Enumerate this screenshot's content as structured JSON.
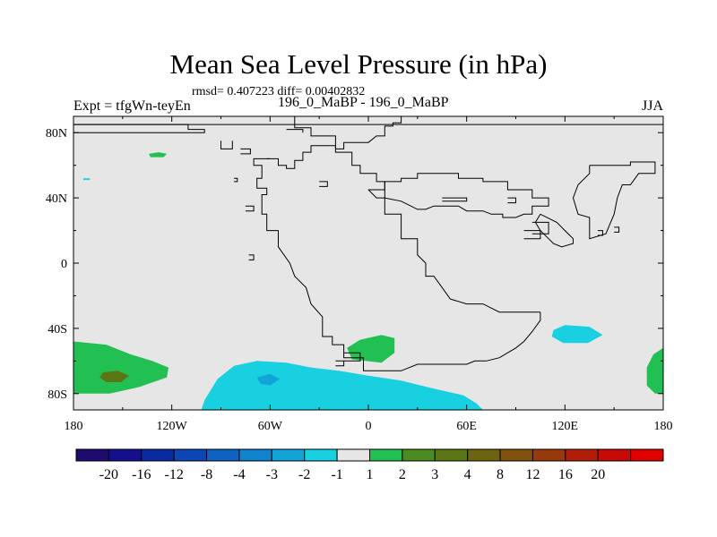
{
  "title": "Mean Sea Level Pressure (in hPa)",
  "subtitle": "rmsd= 0.407223 diff= 0.00402832",
  "left_label": "Expt = tfgWn-teyEn",
  "center_label": "196_0_MaBP - 196_0_MaBP",
  "right_label": "JJA",
  "map": {
    "projection": "cylindrical equidistant",
    "lon_range": [
      -180,
      180
    ],
    "lat_range": [
      -90,
      90
    ],
    "background_color": "#e6e6e6",
    "coastline_color": "#000000"
  },
  "x_ticks": [
    {
      "lon": -180,
      "label": "180"
    },
    {
      "lon": -120,
      "label": "120W"
    },
    {
      "lon": -60,
      "label": "60W"
    },
    {
      "lon": 0,
      "label": "0"
    },
    {
      "lon": 60,
      "label": "60E"
    },
    {
      "lon": 120,
      "label": "120E"
    },
    {
      "lon": 180,
      "label": "180"
    }
  ],
  "y_ticks": [
    {
      "lat": 80,
      "label": "80N"
    },
    {
      "lat": 40,
      "label": "40N"
    },
    {
      "lat": 0,
      "label": "0"
    },
    {
      "lat": -40,
      "label": "40S"
    },
    {
      "lat": -80,
      "label": "80S"
    }
  ],
  "colorbar": {
    "colors": [
      "#1f0a6e",
      "#140f8c",
      "#0c2aa0",
      "#0b46b4",
      "#0d62c2",
      "#1182cc",
      "#12a3d8",
      "#18d0e0",
      "#e6e6e6",
      "#22c052",
      "#4a8c22",
      "#5b7614",
      "#6e6410",
      "#80500e",
      "#963a0c",
      "#b01e08",
      "#c80a06",
      "#e00000"
    ],
    "labels": [
      "-20",
      "-16",
      "-12",
      "-8",
      "-4",
      "-3",
      "-2",
      "-1",
      "1",
      "2",
      "3",
      "4",
      "8",
      "12",
      "16",
      "20"
    ]
  },
  "anomaly_regions": [
    {
      "name": "arctic-positive",
      "level": 2,
      "color": "#22c052",
      "points": [
        [
          -134,
          67
        ],
        [
          -128,
          68
        ],
        [
          -123,
          67
        ],
        [
          -125,
          65
        ],
        [
          -133,
          65
        ]
      ]
    },
    {
      "name": "north-pacific-small-negative",
      "level": -1,
      "color": "#18d0e0",
      "points": [
        [
          -174,
          52
        ],
        [
          -170,
          52
        ],
        [
          -170,
          51
        ],
        [
          -174,
          51
        ]
      ]
    },
    {
      "name": "south-pacific-positive",
      "level": 2,
      "color": "#22c052",
      "points": [
        [
          -180,
          -48
        ],
        [
          -160,
          -50
        ],
        [
          -145,
          -56
        ],
        [
          -132,
          -60
        ],
        [
          -122,
          -64
        ],
        [
          -123,
          -70
        ],
        [
          -140,
          -76
        ],
        [
          -158,
          -80
        ],
        [
          -180,
          -80
        ]
      ]
    },
    {
      "name": "south-pacific-core",
      "level": 3,
      "color": "#5b7614",
      "points": [
        [
          -162,
          -67
        ],
        [
          -153,
          -66
        ],
        [
          -146,
          -69
        ],
        [
          -151,
          -73
        ],
        [
          -160,
          -73
        ],
        [
          -164,
          -70
        ]
      ]
    },
    {
      "name": "southern-ocean-negative",
      "level": -1,
      "color": "#18d0e0",
      "points": [
        [
          -102,
          -90
        ],
        [
          -100,
          -84
        ],
        [
          -92,
          -71
        ],
        [
          -82,
          -63
        ],
        [
          -68,
          -60
        ],
        [
          -50,
          -61
        ],
        [
          -35,
          -64
        ],
        [
          -18,
          -66
        ],
        [
          0,
          -69
        ],
        [
          20,
          -72
        ],
        [
          40,
          -77
        ],
        [
          58,
          -81
        ],
        [
          66,
          -86
        ],
        [
          70,
          -90
        ]
      ]
    },
    {
      "name": "southern-ocean-core",
      "level": -2,
      "color": "#12a3d8",
      "points": [
        [
          -68,
          -70
        ],
        [
          -60,
          -68
        ],
        [
          -54,
          -71
        ],
        [
          -60,
          -75
        ],
        [
          -66,
          -74
        ]
      ]
    },
    {
      "name": "south-atlantic-positive",
      "level": 2,
      "color": "#22c052",
      "points": [
        [
          -13,
          -52
        ],
        [
          -5,
          -47
        ],
        [
          8,
          -44
        ],
        [
          16,
          -46
        ],
        [
          16,
          -55
        ],
        [
          8,
          -61
        ],
        [
          -10,
          -59
        ]
      ]
    },
    {
      "name": "indian-ocean-negative",
      "level": -1,
      "color": "#18d0e0",
      "points": [
        [
          113,
          -41
        ],
        [
          120,
          -38
        ],
        [
          135,
          -39
        ],
        [
          143,
          -44
        ],
        [
          134,
          -49
        ],
        [
          119,
          -49
        ],
        [
          112,
          -45
        ]
      ]
    },
    {
      "name": "dateline-positive",
      "level": 2,
      "color": "#22c052",
      "points": [
        [
          180,
          -52
        ],
        [
          174,
          -56
        ],
        [
          170,
          -64
        ],
        [
          170,
          -75
        ],
        [
          175,
          -80
        ],
        [
          180,
          -80
        ]
      ]
    }
  ],
  "coastlines": [
    [
      [
        -180,
        85
      ],
      [
        -110,
        85
      ],
      [
        -110,
        82
      ],
      [
        -100,
        82
      ],
      [
        -100,
        80
      ],
      [
        -180,
        80
      ]
    ],
    [
      [
        -180,
        85
      ],
      [
        180,
        85
      ]
    ],
    [
      [
        -90,
        75
      ],
      [
        -90,
        70
      ],
      [
        -83,
        70
      ],
      [
        -83,
        75
      ]
    ],
    [
      [
        -78,
        70
      ],
      [
        -72,
        70
      ],
      [
        -72,
        67
      ],
      [
        -78,
        67
      ]
    ],
    [
      [
        -45,
        90
      ],
      [
        -45,
        83
      ],
      [
        -35,
        83
      ],
      [
        -35,
        78
      ],
      [
        -20,
        78
      ],
      [
        -20,
        70
      ],
      [
        -15,
        70
      ],
      [
        -15,
        74
      ],
      [
        0,
        74
      ],
      [
        5,
        78
      ],
      [
        10,
        78
      ],
      [
        10,
        84
      ],
      [
        15,
        84
      ],
      [
        15,
        86
      ],
      [
        20,
        86
      ],
      [
        20,
        90
      ]
    ],
    [
      [
        -60,
        64
      ],
      [
        -70,
        64
      ],
      [
        -70,
        60
      ],
      [
        -65,
        60
      ],
      [
        -65,
        52
      ],
      [
        -68,
        52
      ],
      [
        -68,
        46
      ],
      [
        -62,
        46
      ],
      [
        -62,
        42
      ],
      [
        -65,
        42
      ],
      [
        -65,
        30
      ],
      [
        -62,
        30
      ],
      [
        -62,
        20
      ],
      [
        -55,
        20
      ],
      [
        -55,
        10
      ],
      [
        -48,
        0
      ],
      [
        -45,
        -8
      ],
      [
        -38,
        -15
      ],
      [
        -35,
        -25
      ],
      [
        -28,
        -33
      ],
      [
        -28,
        -45
      ],
      [
        -22,
        -45
      ],
      [
        -22,
        -50
      ],
      [
        -15,
        -50
      ],
      [
        -15,
        -58
      ],
      [
        -3,
        -58
      ],
      [
        -3,
        -66
      ],
      [
        20,
        -66
      ],
      [
        30,
        -62
      ],
      [
        60,
        -62
      ],
      [
        65,
        -60
      ],
      [
        72,
        -60
      ],
      [
        80,
        -58
      ],
      [
        85,
        -55
      ],
      [
        90,
        -52
      ],
      [
        95,
        -48
      ],
      [
        100,
        -42
      ],
      [
        105,
        -35
      ],
      [
        105,
        -30
      ]
    ],
    [
      [
        -62,
        64
      ],
      [
        -55,
        64
      ],
      [
        -55,
        60
      ],
      [
        -50,
        60
      ],
      [
        -50,
        58
      ],
      [
        -45,
        58
      ],
      [
        -45,
        63
      ],
      [
        -40,
        63
      ],
      [
        -40,
        68
      ],
      [
        -35,
        68
      ],
      [
        -35,
        72
      ],
      [
        -20,
        72
      ],
      [
        -20,
        68
      ],
      [
        -10,
        68
      ],
      [
        -10,
        60
      ],
      [
        -5,
        60
      ],
      [
        -5,
        55
      ],
      [
        5,
        55
      ],
      [
        5,
        50
      ],
      [
        10,
        50
      ],
      [
        10,
        30
      ],
      [
        20,
        30
      ],
      [
        20,
        15
      ],
      [
        30,
        15
      ],
      [
        30,
        5
      ],
      [
        35,
        0
      ],
      [
        35,
        -8
      ],
      [
        40,
        -8
      ],
      [
        45,
        -15
      ],
      [
        50,
        -22
      ],
      [
        60,
        -25
      ],
      [
        70,
        -25
      ],
      [
        80,
        -30
      ],
      [
        95,
        -30
      ],
      [
        105,
        -30
      ]
    ],
    [
      [
        -50,
        82
      ],
      [
        -40,
        82
      ],
      [
        -40,
        80
      ]
    ],
    [
      [
        -82,
        52
      ],
      [
        -80,
        52
      ],
      [
        -80,
        50
      ],
      [
        -82,
        50
      ]
    ],
    [
      [
        -73,
        5
      ],
      [
        -70,
        5
      ],
      [
        -70,
        2
      ],
      [
        -73,
        2
      ]
    ],
    [
      [
        -15,
        -55
      ],
      [
        -5,
        -55
      ],
      [
        -5,
        -60
      ],
      [
        -15,
        -60
      ]
    ],
    [
      [
        -20,
        -60
      ],
      [
        -15,
        -60
      ],
      [
        -15,
        -63
      ],
      [
        -20,
        -63
      ]
    ],
    [
      [
        0,
        45
      ],
      [
        10,
        45
      ],
      [
        10,
        50
      ],
      [
        20,
        50
      ],
      [
        20,
        52
      ],
      [
        30,
        52
      ],
      [
        30,
        55
      ],
      [
        50,
        55
      ],
      [
        55,
        55
      ],
      [
        55,
        52
      ],
      [
        70,
        52
      ],
      [
        70,
        50
      ],
      [
        85,
        50
      ],
      [
        85,
        45
      ],
      [
        100,
        45
      ],
      [
        100,
        40
      ],
      [
        110,
        40
      ],
      [
        110,
        35
      ],
      [
        100,
        35
      ],
      [
        100,
        30
      ],
      [
        95,
        30
      ],
      [
        90,
        28
      ],
      [
        82,
        28
      ],
      [
        82,
        30
      ],
      [
        75,
        30
      ],
      [
        70,
        32
      ],
      [
        60,
        32
      ],
      [
        55,
        35
      ],
      [
        40,
        35
      ],
      [
        35,
        33
      ],
      [
        30,
        33
      ],
      [
        20,
        38
      ],
      [
        10,
        40
      ],
      [
        5,
        40
      ],
      [
        0,
        45
      ]
    ],
    [
      [
        45,
        40
      ],
      [
        60,
        40
      ],
      [
        60,
        38
      ],
      [
        45,
        38
      ]
    ],
    [
      [
        85,
        40
      ],
      [
        90,
        40
      ],
      [
        90,
        37
      ],
      [
        85,
        37
      ]
    ],
    [
      [
        95,
        20
      ],
      [
        105,
        20
      ],
      [
        105,
        15
      ],
      [
        95,
        15
      ]
    ],
    [
      [
        100,
        25
      ],
      [
        110,
        25
      ],
      [
        110,
        18
      ],
      [
        100,
        18
      ]
    ],
    [
      [
        105,
        30
      ],
      [
        115,
        25
      ],
      [
        120,
        20
      ],
      [
        125,
        15
      ],
      [
        125,
        12
      ],
      [
        118,
        10
      ],
      [
        113,
        12
      ],
      [
        110,
        15
      ],
      [
        105,
        20
      ],
      [
        102,
        25
      ],
      [
        105,
        30
      ]
    ],
    [
      [
        135,
        60
      ],
      [
        160,
        60
      ],
      [
        160,
        62
      ],
      [
        175,
        62
      ],
      [
        175,
        55
      ],
      [
        165,
        55
      ],
      [
        160,
        48
      ],
      [
        155,
        48
      ],
      [
        152,
        40
      ],
      [
        150,
        30
      ],
      [
        145,
        18
      ],
      [
        135,
        15
      ],
      [
        135,
        28
      ],
      [
        128,
        30
      ],
      [
        125,
        40
      ],
      [
        128,
        48
      ],
      [
        135,
        55
      ],
      [
        135,
        60
      ]
    ],
    [
      [
        140,
        20
      ],
      [
        143,
        20
      ],
      [
        143,
        17
      ],
      [
        140,
        17
      ]
    ],
    [
      [
        150,
        22
      ],
      [
        153,
        22
      ],
      [
        153,
        19
      ],
      [
        150,
        19
      ]
    ],
    [
      [
        -30,
        50
      ],
      [
        -25,
        50
      ],
      [
        -25,
        47
      ],
      [
        -30,
        47
      ]
    ],
    [
      [
        -75,
        35
      ],
      [
        -70,
        35
      ],
      [
        -70,
        32
      ],
      [
        -75,
        32
      ]
    ]
  ]
}
